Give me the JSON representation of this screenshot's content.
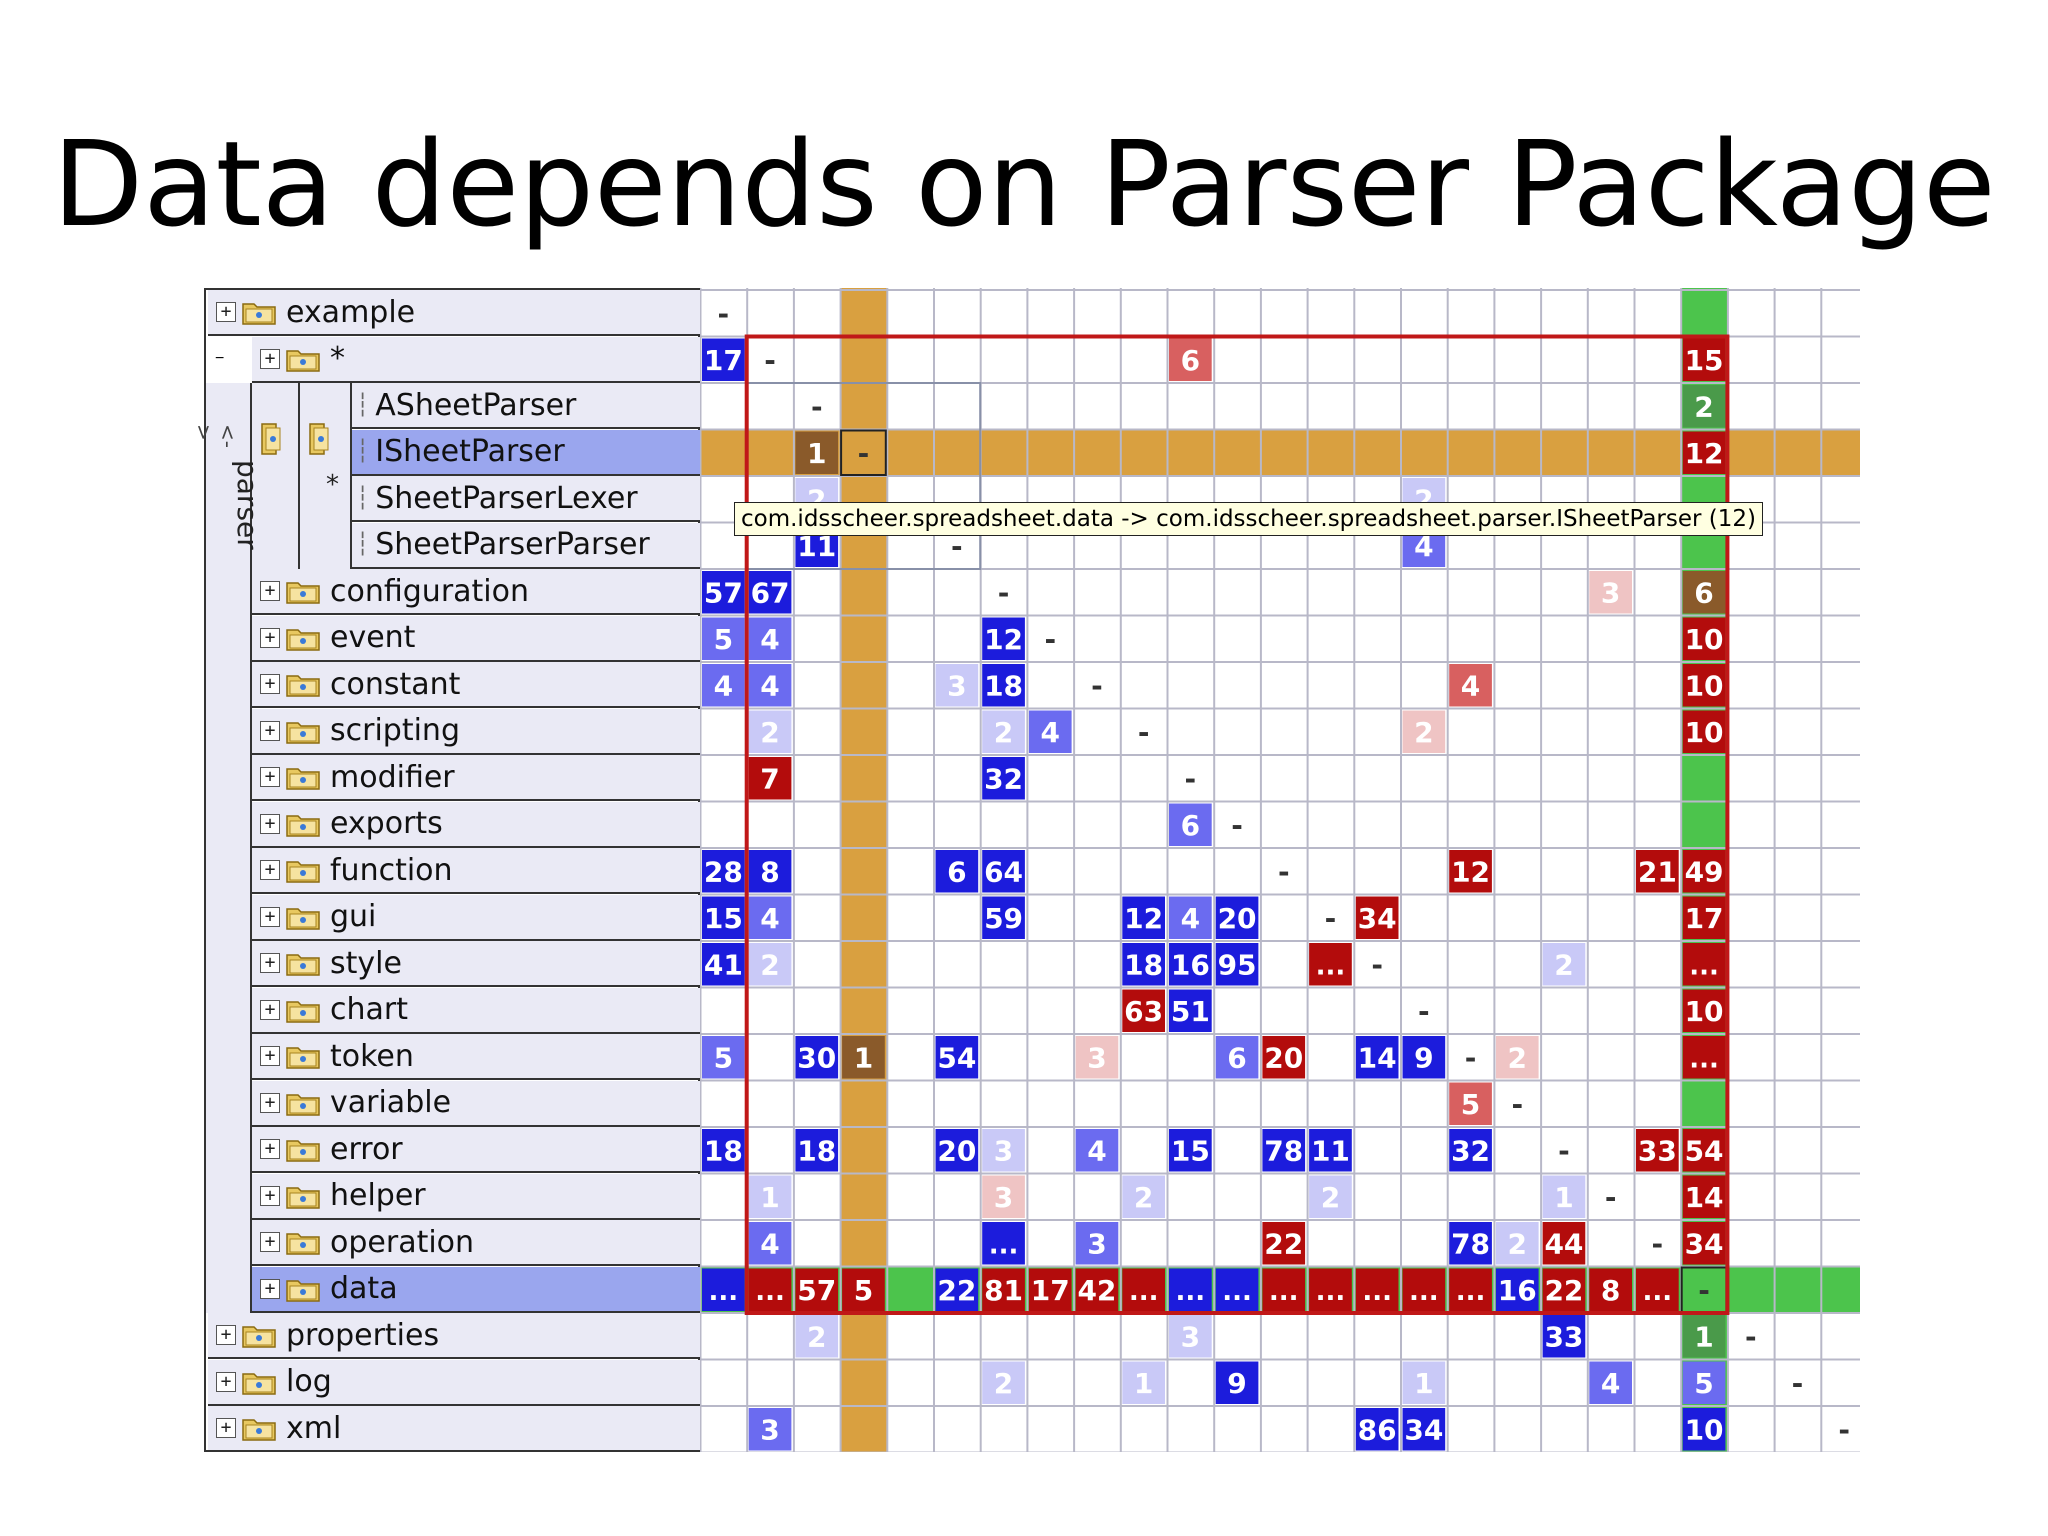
{
  "slide_title": "Data depends on Parser Package",
  "tooltip": "com.idsscheer.spreadsheet.data -> com.idsscheer.spreadsheet.parser.ISheetParser (12)",
  "tree": {
    "group_label": "parser",
    "group_marker": "*",
    "expand_plus": "+",
    "expand_minus": "−",
    "rows": [
      {
        "label": "example",
        "level": 0,
        "expander": "+",
        "folder": true
      },
      {
        "label": "*",
        "level": 1,
        "expander": "+",
        "folder": true
      },
      {
        "label": "ASheetParser",
        "level": 3,
        "expander": "",
        "folder": false
      },
      {
        "label": "ISheetParser",
        "level": 3,
        "expander": "",
        "folder": false,
        "selected": true
      },
      {
        "label": "SheetParserLexer",
        "level": 3,
        "expander": "",
        "folder": false
      },
      {
        "label": "SheetParserParser",
        "level": 3,
        "expander": "",
        "folder": false
      },
      {
        "label": "configuration",
        "level": 1,
        "expander": "+",
        "folder": true
      },
      {
        "label": "event",
        "level": 1,
        "expander": "+",
        "folder": true
      },
      {
        "label": "constant",
        "level": 1,
        "expander": "+",
        "folder": true
      },
      {
        "label": "scripting",
        "level": 1,
        "expander": "+",
        "folder": true
      },
      {
        "label": "modifier",
        "level": 1,
        "expander": "+",
        "folder": true
      },
      {
        "label": "exports",
        "level": 1,
        "expander": "+",
        "folder": true
      },
      {
        "label": "function",
        "level": 1,
        "expander": "+",
        "folder": true
      },
      {
        "label": "gui",
        "level": 1,
        "expander": "+",
        "folder": true
      },
      {
        "label": "style",
        "level": 1,
        "expander": "+",
        "folder": true
      },
      {
        "label": "chart",
        "level": 1,
        "expander": "+",
        "folder": true
      },
      {
        "label": "token",
        "level": 1,
        "expander": "+",
        "folder": true
      },
      {
        "label": "variable",
        "level": 1,
        "expander": "+",
        "folder": true
      },
      {
        "label": "error",
        "level": 1,
        "expander": "+",
        "folder": true
      },
      {
        "label": "helper",
        "level": 1,
        "expander": "+",
        "folder": true
      },
      {
        "label": "operation",
        "level": 1,
        "expander": "+",
        "folder": true
      },
      {
        "label": "data",
        "level": 1,
        "expander": "+",
        "folder": true,
        "selected": true
      },
      {
        "label": "properties",
        "level": 0,
        "expander": "+",
        "folder": true
      },
      {
        "label": "log",
        "level": 0,
        "expander": "+",
        "folder": true
      },
      {
        "label": "xml",
        "level": 0,
        "expander": "+",
        "folder": true
      }
    ]
  },
  "matrix": {
    "num_cols": 25,
    "selected_row": 3,
    "selected_col": 3,
    "dependency_row": 21,
    "dependency_col": 21,
    "colors": {
      "blue": "#1c1cdc",
      "blue_mid": "#6b6bf0",
      "blue_light": "#c9c9f7",
      "red": "#b30c0c",
      "red_mid": "#d86060",
      "red_light": "#efc4c4",
      "green_cell": "#4a9a4a",
      "brown_cell": "#8a5a2a",
      "gold": "#d9a040",
      "green_band": "#4cc44c",
      "grid_line": "#b8b8c8",
      "cycle_border": "#c01818"
    },
    "cells": [
      {
        "r": 0,
        "c": 0,
        "v": "-",
        "k": "dash"
      },
      {
        "r": 1,
        "c": 0,
        "v": "17",
        "k": "blue"
      },
      {
        "r": 1,
        "c": 1,
        "v": "-",
        "k": "dash"
      },
      {
        "r": 1,
        "c": 10,
        "v": "6",
        "k": "red_mid"
      },
      {
        "r": 1,
        "c": 21,
        "v": "15",
        "k": "red"
      },
      {
        "r": 2,
        "c": 2,
        "v": "-",
        "k": "dash"
      },
      {
        "r": 2,
        "c": 21,
        "v": "2",
        "k": "green_cell"
      },
      {
        "r": 3,
        "c": 2,
        "v": "1",
        "k": "brown_cell"
      },
      {
        "r": 3,
        "c": 3,
        "v": "-",
        "k": "dash"
      },
      {
        "r": 3,
        "c": 21,
        "v": "12",
        "k": "red"
      },
      {
        "r": 4,
        "c": 2,
        "v": "2",
        "k": "blue_light"
      },
      {
        "r": 4,
        "c": 15,
        "v": "2",
        "k": "blue_light"
      },
      {
        "r": 5,
        "c": 2,
        "v": "11",
        "k": "blue"
      },
      {
        "r": 5,
        "c": 5,
        "v": "-",
        "k": "dash"
      },
      {
        "r": 5,
        "c": 15,
        "v": "4",
        "k": "blue_mid"
      },
      {
        "r": 6,
        "c": 0,
        "v": "57",
        "k": "blue"
      },
      {
        "r": 6,
        "c": 1,
        "v": "67",
        "k": "blue"
      },
      {
        "r": 6,
        "c": 6,
        "v": "-",
        "k": "dash"
      },
      {
        "r": 6,
        "c": 19,
        "v": "3",
        "k": "red_light"
      },
      {
        "r": 6,
        "c": 21,
        "v": "6",
        "k": "brown_cell"
      },
      {
        "r": 7,
        "c": 0,
        "v": "5",
        "k": "blue_mid"
      },
      {
        "r": 7,
        "c": 1,
        "v": "4",
        "k": "blue_mid"
      },
      {
        "r": 7,
        "c": 6,
        "v": "12",
        "k": "blue"
      },
      {
        "r": 7,
        "c": 7,
        "v": "-",
        "k": "dash"
      },
      {
        "r": 7,
        "c": 21,
        "v": "10",
        "k": "red"
      },
      {
        "r": 8,
        "c": 0,
        "v": "4",
        "k": "blue_mid"
      },
      {
        "r": 8,
        "c": 1,
        "v": "4",
        "k": "blue_mid"
      },
      {
        "r": 8,
        "c": 5,
        "v": "3",
        "k": "blue_light"
      },
      {
        "r": 8,
        "c": 6,
        "v": "18",
        "k": "blue"
      },
      {
        "r": 8,
        "c": 8,
        "v": "-",
        "k": "dash"
      },
      {
        "r": 8,
        "c": 16,
        "v": "4",
        "k": "red_mid"
      },
      {
        "r": 8,
        "c": 21,
        "v": "10",
        "k": "red"
      },
      {
        "r": 9,
        "c": 1,
        "v": "2",
        "k": "blue_light"
      },
      {
        "r": 9,
        "c": 6,
        "v": "2",
        "k": "blue_light"
      },
      {
        "r": 9,
        "c": 7,
        "v": "4",
        "k": "blue_mid"
      },
      {
        "r": 9,
        "c": 9,
        "v": "-",
        "k": "dash"
      },
      {
        "r": 9,
        "c": 15,
        "v": "2",
        "k": "red_light"
      },
      {
        "r": 9,
        "c": 21,
        "v": "10",
        "k": "red"
      },
      {
        "r": 10,
        "c": 1,
        "v": "7",
        "k": "red"
      },
      {
        "r": 10,
        "c": 6,
        "v": "32",
        "k": "blue"
      },
      {
        "r": 10,
        "c": 10,
        "v": "-",
        "k": "dash"
      },
      {
        "r": 11,
        "c": 10,
        "v": "6",
        "k": "blue_mid"
      },
      {
        "r": 11,
        "c": 11,
        "v": "-",
        "k": "dash"
      },
      {
        "r": 12,
        "c": 0,
        "v": "28",
        "k": "blue"
      },
      {
        "r": 12,
        "c": 1,
        "v": "8",
        "k": "blue"
      },
      {
        "r": 12,
        "c": 5,
        "v": "6",
        "k": "blue"
      },
      {
        "r": 12,
        "c": 6,
        "v": "64",
        "k": "blue"
      },
      {
        "r": 12,
        "c": 12,
        "v": "-",
        "k": "dash"
      },
      {
        "r": 12,
        "c": 16,
        "v": "12",
        "k": "red"
      },
      {
        "r": 12,
        "c": 20,
        "v": "21",
        "k": "red"
      },
      {
        "r": 12,
        "c": 21,
        "v": "49",
        "k": "red"
      },
      {
        "r": 13,
        "c": 0,
        "v": "15",
        "k": "blue"
      },
      {
        "r": 13,
        "c": 1,
        "v": "4",
        "k": "blue_mid"
      },
      {
        "r": 13,
        "c": 6,
        "v": "59",
        "k": "blue"
      },
      {
        "r": 13,
        "c": 9,
        "v": "12",
        "k": "blue"
      },
      {
        "r": 13,
        "c": 10,
        "v": "4",
        "k": "blue_mid"
      },
      {
        "r": 13,
        "c": 11,
        "v": "20",
        "k": "blue"
      },
      {
        "r": 13,
        "c": 13,
        "v": "-",
        "k": "dash"
      },
      {
        "r": 13,
        "c": 14,
        "v": "34",
        "k": "red"
      },
      {
        "r": 13,
        "c": 21,
        "v": "17",
        "k": "red"
      },
      {
        "r": 14,
        "c": 0,
        "v": "41",
        "k": "blue"
      },
      {
        "r": 14,
        "c": 1,
        "v": "2",
        "k": "blue_light"
      },
      {
        "r": 14,
        "c": 9,
        "v": "18",
        "k": "blue"
      },
      {
        "r": 14,
        "c": 10,
        "v": "16",
        "k": "blue"
      },
      {
        "r": 14,
        "c": 11,
        "v": "95",
        "k": "blue"
      },
      {
        "r": 14,
        "c": 13,
        "v": "...",
        "k": "red"
      },
      {
        "r": 14,
        "c": 14,
        "v": "-",
        "k": "dash"
      },
      {
        "r": 14,
        "c": 18,
        "v": "2",
        "k": "blue_light"
      },
      {
        "r": 14,
        "c": 21,
        "v": "...",
        "k": "red"
      },
      {
        "r": 15,
        "c": 9,
        "v": "63",
        "k": "red"
      },
      {
        "r": 15,
        "c": 10,
        "v": "51",
        "k": "blue"
      },
      {
        "r": 15,
        "c": 15,
        "v": "-",
        "k": "dash"
      },
      {
        "r": 15,
        "c": 21,
        "v": "10",
        "k": "red"
      },
      {
        "r": 16,
        "c": 0,
        "v": "5",
        "k": "blue_mid"
      },
      {
        "r": 16,
        "c": 2,
        "v": "30",
        "k": "blue"
      },
      {
        "r": 16,
        "c": 3,
        "v": "1",
        "k": "brown_cell"
      },
      {
        "r": 16,
        "c": 5,
        "v": "54",
        "k": "blue"
      },
      {
        "r": 16,
        "c": 8,
        "v": "3",
        "k": "red_light"
      },
      {
        "r": 16,
        "c": 11,
        "v": "6",
        "k": "blue_mid"
      },
      {
        "r": 16,
        "c": 12,
        "v": "20",
        "k": "red"
      },
      {
        "r": 16,
        "c": 14,
        "v": "14",
        "k": "blue"
      },
      {
        "r": 16,
        "c": 15,
        "v": "9",
        "k": "blue"
      },
      {
        "r": 16,
        "c": 16,
        "v": "-",
        "k": "dash"
      },
      {
        "r": 16,
        "c": 17,
        "v": "2",
        "k": "red_light"
      },
      {
        "r": 16,
        "c": 21,
        "v": "...",
        "k": "red"
      },
      {
        "r": 17,
        "c": 16,
        "v": "5",
        "k": "red_mid"
      },
      {
        "r": 17,
        "c": 17,
        "v": "-",
        "k": "dash"
      },
      {
        "r": 18,
        "c": 0,
        "v": "18",
        "k": "blue"
      },
      {
        "r": 18,
        "c": 2,
        "v": "18",
        "k": "blue"
      },
      {
        "r": 18,
        "c": 5,
        "v": "20",
        "k": "blue"
      },
      {
        "r": 18,
        "c": 6,
        "v": "3",
        "k": "blue_light"
      },
      {
        "r": 18,
        "c": 8,
        "v": "4",
        "k": "blue_mid"
      },
      {
        "r": 18,
        "c": 10,
        "v": "15",
        "k": "blue"
      },
      {
        "r": 18,
        "c": 12,
        "v": "78",
        "k": "blue"
      },
      {
        "r": 18,
        "c": 13,
        "v": "11",
        "k": "blue"
      },
      {
        "r": 18,
        "c": 16,
        "v": "32",
        "k": "blue"
      },
      {
        "r": 18,
        "c": 18,
        "v": "-",
        "k": "dash"
      },
      {
        "r": 18,
        "c": 20,
        "v": "33",
        "k": "red"
      },
      {
        "r": 18,
        "c": 21,
        "v": "54",
        "k": "red"
      },
      {
        "r": 19,
        "c": 1,
        "v": "1",
        "k": "blue_light"
      },
      {
        "r": 19,
        "c": 6,
        "v": "3",
        "k": "red_light"
      },
      {
        "r": 19,
        "c": 9,
        "v": "2",
        "k": "blue_light"
      },
      {
        "r": 19,
        "c": 13,
        "v": "2",
        "k": "blue_light"
      },
      {
        "r": 19,
        "c": 18,
        "v": "1",
        "k": "blue_light"
      },
      {
        "r": 19,
        "c": 19,
        "v": "-",
        "k": "dash"
      },
      {
        "r": 19,
        "c": 21,
        "v": "14",
        "k": "red"
      },
      {
        "r": 20,
        "c": 1,
        "v": "4",
        "k": "blue_mid"
      },
      {
        "r": 20,
        "c": 6,
        "v": "...",
        "k": "blue"
      },
      {
        "r": 20,
        "c": 8,
        "v": "3",
        "k": "blue_mid"
      },
      {
        "r": 20,
        "c": 12,
        "v": "22",
        "k": "red"
      },
      {
        "r": 20,
        "c": 16,
        "v": "78",
        "k": "blue"
      },
      {
        "r": 20,
        "c": 17,
        "v": "2",
        "k": "blue_light"
      },
      {
        "r": 20,
        "c": 18,
        "v": "44",
        "k": "red"
      },
      {
        "r": 20,
        "c": 20,
        "v": "-",
        "k": "dash"
      },
      {
        "r": 20,
        "c": 21,
        "v": "34",
        "k": "red"
      },
      {
        "r": 21,
        "c": 0,
        "v": "...",
        "k": "blue"
      },
      {
        "r": 21,
        "c": 1,
        "v": "...",
        "k": "red"
      },
      {
        "r": 21,
        "c": 2,
        "v": "57",
        "k": "red"
      },
      {
        "r": 21,
        "c": 3,
        "v": "5",
        "k": "red"
      },
      {
        "r": 21,
        "c": 5,
        "v": "22",
        "k": "blue"
      },
      {
        "r": 21,
        "c": 6,
        "v": "81",
        "k": "red"
      },
      {
        "r": 21,
        "c": 7,
        "v": "17",
        "k": "red"
      },
      {
        "r": 21,
        "c": 8,
        "v": "42",
        "k": "red"
      },
      {
        "r": 21,
        "c": 9,
        "v": "...",
        "k": "red"
      },
      {
        "r": 21,
        "c": 10,
        "v": "...",
        "k": "blue"
      },
      {
        "r": 21,
        "c": 11,
        "v": "...",
        "k": "blue"
      },
      {
        "r": 21,
        "c": 12,
        "v": "...",
        "k": "red"
      },
      {
        "r": 21,
        "c": 13,
        "v": "...",
        "k": "red"
      },
      {
        "r": 21,
        "c": 14,
        "v": "...",
        "k": "red"
      },
      {
        "r": 21,
        "c": 15,
        "v": "...",
        "k": "red"
      },
      {
        "r": 21,
        "c": 16,
        "v": "...",
        "k": "red"
      },
      {
        "r": 21,
        "c": 17,
        "v": "16",
        "k": "blue"
      },
      {
        "r": 21,
        "c": 18,
        "v": "22",
        "k": "red"
      },
      {
        "r": 21,
        "c": 19,
        "v": "8",
        "k": "red"
      },
      {
        "r": 21,
        "c": 20,
        "v": "...",
        "k": "red"
      },
      {
        "r": 21,
        "c": 21,
        "v": "-",
        "k": "dash"
      },
      {
        "r": 22,
        "c": 2,
        "v": "2",
        "k": "blue_light"
      },
      {
        "r": 22,
        "c": 10,
        "v": "3",
        "k": "blue_light"
      },
      {
        "r": 22,
        "c": 18,
        "v": "33",
        "k": "blue"
      },
      {
        "r": 22,
        "c": 21,
        "v": "1",
        "k": "green_cell"
      },
      {
        "r": 22,
        "c": 22,
        "v": "-",
        "k": "dash"
      },
      {
        "r": 23,
        "c": 6,
        "v": "2",
        "k": "blue_light"
      },
      {
        "r": 23,
        "c": 9,
        "v": "1",
        "k": "blue_light"
      },
      {
        "r": 23,
        "c": 11,
        "v": "9",
        "k": "blue"
      },
      {
        "r": 23,
        "c": 15,
        "v": "1",
        "k": "blue_light"
      },
      {
        "r": 23,
        "c": 19,
        "v": "4",
        "k": "blue_mid"
      },
      {
        "r": 23,
        "c": 21,
        "v": "5",
        "k": "blue_mid"
      },
      {
        "r": 23,
        "c": 23,
        "v": "-",
        "k": "dash"
      },
      {
        "r": 24,
        "c": 1,
        "v": "3",
        "k": "blue_mid"
      },
      {
        "r": 24,
        "c": 14,
        "v": "86",
        "k": "blue"
      },
      {
        "r": 24,
        "c": 15,
        "v": "34",
        "k": "blue"
      },
      {
        "r": 24,
        "c": 21,
        "v": "10",
        "k": "blue"
      },
      {
        "r": 24,
        "c": 24,
        "v": "-",
        "k": "dash"
      }
    ]
  }
}
